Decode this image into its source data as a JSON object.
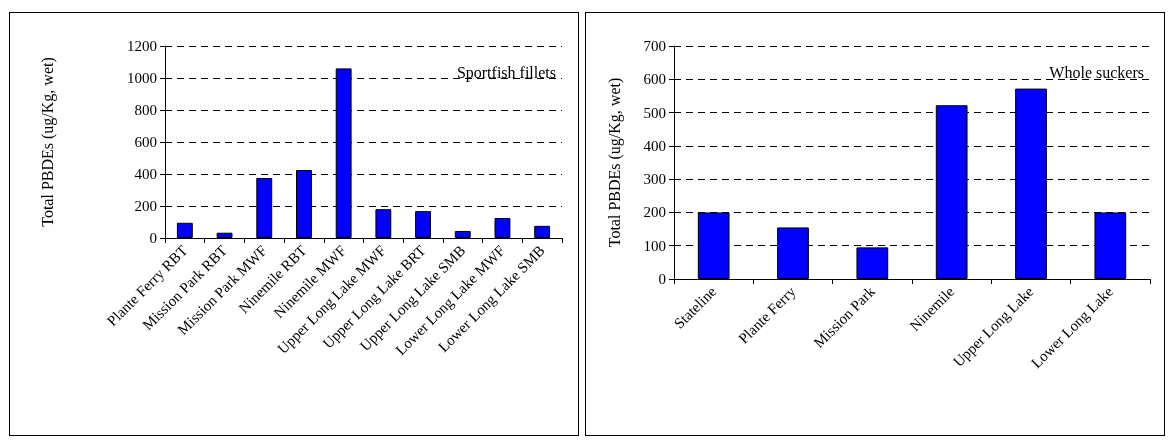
{
  "chart_data": [
    {
      "type": "bar",
      "ylabel": "Total PBDEs (ug/Kg, wet)",
      "annotations": [
        "Sportfish fillets"
      ],
      "categories": [
        "Plante Ferry RBT",
        "Mission Park RBT",
        "Mission Park MWF",
        "Ninemile RBT",
        "Ninemile MWF",
        "Upper Long Lake MWF",
        "Upper Long Lake BRT",
        "Upper Long Lake SMB",
        "Lower Long Lake MWF",
        "Lower Long Lake SMB"
      ],
      "values": [
        95,
        33,
        375,
        425,
        1060,
        180,
        168,
        44,
        125,
        76
      ],
      "color": "#0000ff",
      "ylim": [
        0,
        1200
      ],
      "yticks": [
        0,
        200,
        400,
        600,
        800,
        1000,
        1200
      ],
      "grid": "y"
    },
    {
      "type": "bar",
      "ylabel": "Total PBDEs (ug/Kg, wet)",
      "annotations": [
        "Whole suckers"
      ],
      "categories": [
        "Stateline",
        "Plante Ferry",
        "Mission Park",
        "Ninemile",
        "Upper Long Lake",
        "Lower Long Lake"
      ],
      "values": [
        200,
        155,
        95,
        522,
        572,
        200
      ],
      "color": "#0000ff",
      "ylim": [
        0,
        700
      ],
      "yticks": [
        0,
        100,
        200,
        300,
        400,
        500,
        600,
        700
      ],
      "grid": "y"
    }
  ]
}
